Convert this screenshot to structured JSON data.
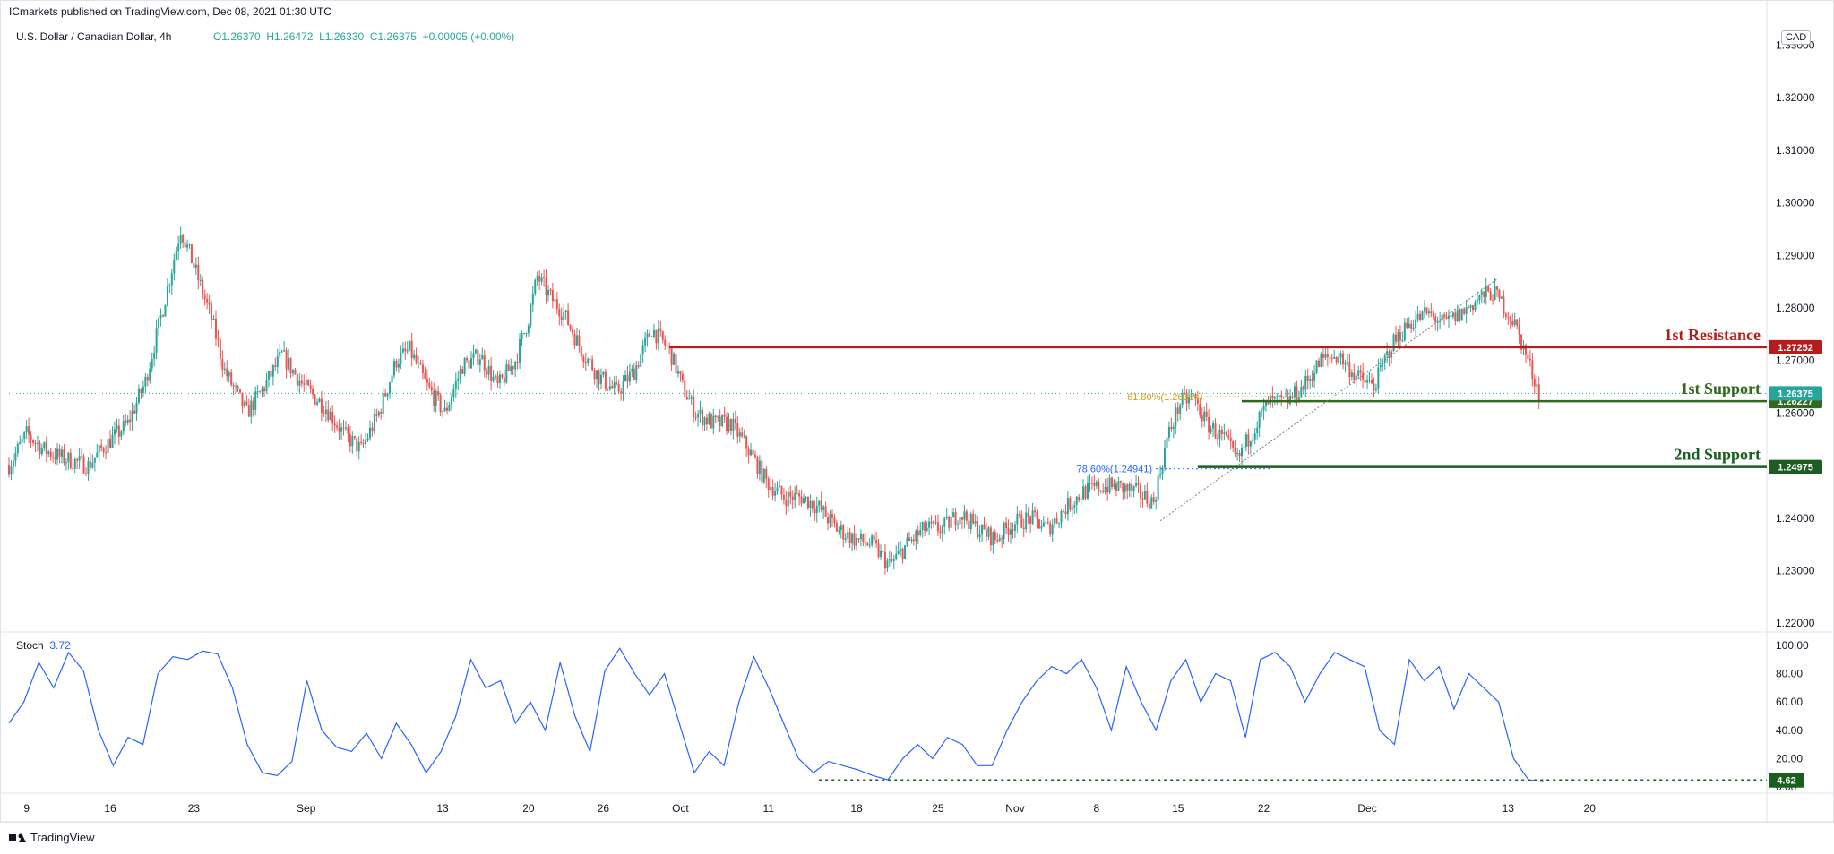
{
  "header": {
    "publisher": "ICmarkets published on TradingView.com, Dec 08, 2021 01:30 UTC",
    "symbol": "U.S. Dollar / Canadian Dollar, 4h",
    "open": "O1.26370",
    "high": "H1.26472",
    "low": "L1.26330",
    "close": "C1.26375",
    "change": "+0.00005 (+0.00%)",
    "currency": "CAD"
  },
  "footer": {
    "brand": "TradingView"
  },
  "colors": {
    "bull": "#26a69a",
    "bear": "#ef5350",
    "resistance": "#b71c1c",
    "support1": "#33691e",
    "support2": "#1b5e20",
    "stoch": "#2962ff",
    "last_price": "#26a69a"
  },
  "chart_data": [
    {
      "type": "candlestick",
      "y_axis_ticks": [
        "1.22000",
        "1.23000",
        "1.24000",
        "1.25000",
        "1.26000",
        "1.27000",
        "1.28000",
        "1.29000",
        "1.30000",
        "1.31000",
        "1.32000",
        "1.33000"
      ],
      "ylim": [
        1.2185,
        1.3335
      ],
      "x_axis_ticks": [
        "9",
        "16",
        "23",
        "Sep",
        "13",
        "20",
        "26",
        "Oct",
        "11",
        "18",
        "25",
        "Nov",
        "8",
        "15",
        "22",
        "Dec",
        "13",
        "20"
      ],
      "close_path": [
        [
          0,
          1.25
        ],
        [
          8,
          1.256
        ],
        [
          16,
          1.253
        ],
        [
          24,
          1.2515
        ],
        [
          36,
          1.25
        ],
        [
          44,
          1.254
        ],
        [
          54,
          1.258
        ],
        [
          62,
          1.266
        ],
        [
          70,
          1.28
        ],
        [
          78,
          1.295
        ],
        [
          84,
          1.288
        ],
        [
          92,
          1.278
        ],
        [
          98,
          1.268
        ],
        [
          108,
          1.26
        ],
        [
          116,
          1.265
        ],
        [
          124,
          1.271
        ],
        [
          134,
          1.265
        ],
        [
          144,
          1.261
        ],
        [
          152,
          1.256
        ],
        [
          160,
          1.253
        ],
        [
          168,
          1.26
        ],
        [
          176,
          1.27
        ],
        [
          182,
          1.272
        ],
        [
          190,
          1.265
        ],
        [
          198,
          1.26
        ],
        [
          206,
          1.269
        ],
        [
          214,
          1.271
        ],
        [
          222,
          1.265
        ],
        [
          230,
          1.27
        ],
        [
          236,
          1.278
        ],
        [
          240,
          1.286
        ],
        [
          246,
          1.282
        ],
        [
          252,
          1.279
        ],
        [
          260,
          1.272
        ],
        [
          268,
          1.267
        ],
        [
          276,
          1.264
        ],
        [
          284,
          1.268
        ],
        [
          292,
          1.276
        ],
        [
          300,
          1.272
        ],
        [
          306,
          1.265
        ],
        [
          312,
          1.26
        ],
        [
          320,
          1.258
        ],
        [
          328,
          1.258
        ],
        [
          336,
          1.253
        ],
        [
          344,
          1.247
        ],
        [
          352,
          1.244
        ],
        [
          360,
          1.244
        ],
        [
          368,
          1.242
        ],
        [
          376,
          1.238
        ],
        [
          384,
          1.236
        ],
        [
          392,
          1.235
        ],
        [
          400,
          1.231
        ],
        [
          408,
          1.235
        ],
        [
          416,
          1.238
        ],
        [
          424,
          1.238
        ],
        [
          432,
          1.241
        ],
        [
          440,
          1.238
        ],
        [
          448,
          1.236
        ],
        [
          456,
          1.239
        ],
        [
          464,
          1.24
        ],
        [
          472,
          1.238
        ],
        [
          480,
          1.242
        ],
        [
          488,
          1.245
        ],
        [
          496,
          1.246
        ],
        [
          504,
          1.246
        ],
        [
          512,
          1.245
        ],
        [
          520,
          1.243
        ],
        [
          526,
          1.255
        ],
        [
          532,
          1.262
        ],
        [
          538,
          1.263
        ],
        [
          544,
          1.258
        ],
        [
          552,
          1.255
        ],
        [
          558,
          1.251
        ],
        [
          564,
          1.256
        ],
        [
          572,
          1.262
        ],
        [
          580,
          1.262
        ],
        [
          588,
          1.265
        ],
        [
          596,
          1.27
        ],
        [
          604,
          1.271
        ],
        [
          612,
          1.267
        ],
        [
          620,
          1.265
        ],
        [
          628,
          1.273
        ],
        [
          636,
          1.277
        ],
        [
          644,
          1.279
        ],
        [
          652,
          1.277
        ],
        [
          660,
          1.279
        ],
        [
          668,
          1.282
        ],
        [
          674,
          1.283
        ],
        [
          678,
          1.281
        ],
        [
          684,
          1.277
        ],
        [
          690,
          1.27
        ],
        [
          695,
          1.264
        ]
      ],
      "horizontal_levels": [
        {
          "name": "1st Resistance",
          "price": "1.27252"
        },
        {
          "name": "1st Support",
          "price": "1.26227"
        },
        {
          "name": "2nd Support",
          "price": "1.24975"
        }
      ],
      "fib_labels": [
        {
          "text": "61.80%(1.26314)",
          "price": 1.26314
        },
        {
          "text": "78.60%(1.24941)",
          "price": 1.24941
        }
      ],
      "last_price": "1.26375"
    },
    {
      "type": "line",
      "title": "Stoch",
      "current_value": "3.72",
      "y_axis_ticks": [
        "0.00",
        "20.00",
        "40.00",
        "60.00",
        "80.00",
        "100.00"
      ],
      "ylim": [
        0,
        100
      ],
      "level_label": "4.62",
      "level_value": 4.62,
      "series": [
        {
          "values": [
            45,
            60,
            88,
            70,
            95,
            82,
            40,
            15,
            35,
            30,
            80,
            92,
            90,
            96,
            94,
            70,
            30,
            10,
            8,
            18,
            75,
            40,
            28,
            25,
            38,
            20,
            45,
            30,
            10,
            25,
            50,
            90,
            70,
            75,
            45,
            60,
            40,
            88,
            50,
            25,
            82,
            98,
            80,
            65,
            80,
            45,
            10,
            25,
            15,
            60,
            92,
            70,
            45,
            20,
            10,
            18,
            15,
            12,
            8,
            5,
            20,
            30,
            20,
            35,
            30,
            15,
            15,
            40,
            60,
            75,
            85,
            80,
            90,
            70,
            40,
            85,
            60,
            40,
            75,
            90,
            60,
            80,
            75,
            35,
            90,
            95,
            85,
            60,
            80,
            95,
            90,
            85,
            40,
            30,
            90,
            75,
            85,
            55,
            80,
            70,
            60,
            20,
            5,
            3.72
          ]
        }
      ]
    }
  ]
}
